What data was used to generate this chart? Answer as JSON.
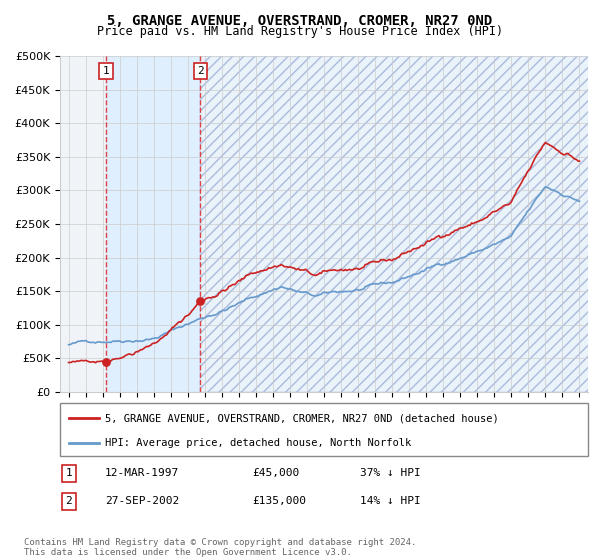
{
  "title": "5, GRANGE AVENUE, OVERSTRAND, CROMER, NR27 0ND",
  "subtitle": "Price paid vs. HM Land Registry's House Price Index (HPI)",
  "ylim": [
    0,
    500000
  ],
  "yticks": [
    0,
    50000,
    100000,
    150000,
    200000,
    250000,
    300000,
    350000,
    400000,
    450000,
    500000
  ],
  "ytick_labels": [
    "£0",
    "£50K",
    "£100K",
    "£150K",
    "£200K",
    "£250K",
    "£300K",
    "£350K",
    "£400K",
    "£450K",
    "£500K"
  ],
  "sale1_date_num": 1997.19,
  "sale1_price": 45000,
  "sale2_date_num": 2002.74,
  "sale2_price": 135000,
  "hpi_line_color": "#6699cc",
  "price_line_color": "#cc2222",
  "sale_dot_color": "#cc2222",
  "vline_color": "#dd4444",
  "shade_color": "#ddeeff",
  "legend_line1": "5, GRANGE AVENUE, OVERSTRAND, CROMER, NR27 0ND (detached house)",
  "legend_line2": "HPI: Average price, detached house, North Norfolk",
  "note1_label": "1",
  "note1_date": "12-MAR-1997",
  "note1_price": "£45,000",
  "note1_hpi": "37% ↓ HPI",
  "note2_label": "2",
  "note2_date": "27-SEP-2002",
  "note2_price": "£135,000",
  "note2_hpi": "14% ↓ HPI",
  "copyright": "Contains HM Land Registry data © Crown copyright and database right 2024.\nThis data is licensed under the Open Government Licence v3.0.",
  "bg_color": "#ffffff",
  "plot_bg_color": "#f0f4f8",
  "grid_color": "#cccccc",
  "xlim_left": 1994.5,
  "xlim_right": 2025.5
}
